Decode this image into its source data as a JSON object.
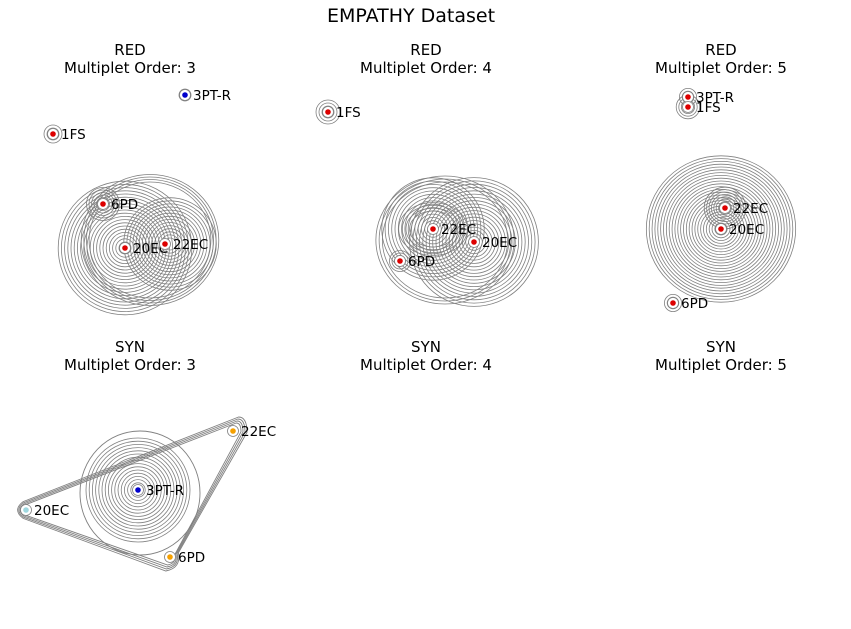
{
  "title": "EMPATHY Dataset",
  "chart_data": [
    {
      "type": "hypergraph",
      "title": "RED",
      "subtitle": "Multiplet Order: 3",
      "nodes": [
        {
          "id": "3PT-R",
          "label": "3PT-R",
          "color": "#0000cc"
        },
        {
          "id": "1FS",
          "label": "1FS",
          "color": "#dd0000"
        },
        {
          "id": "6PD",
          "label": "6PD",
          "color": "#dd0000"
        },
        {
          "id": "20EC",
          "label": "20EC",
          "color": "#dd0000"
        },
        {
          "id": "22EC",
          "label": "22EC",
          "color": "#dd0000"
        }
      ]
    },
    {
      "type": "hypergraph",
      "title": "RED",
      "subtitle": "Multiplet Order: 4",
      "nodes": [
        {
          "id": "1FS",
          "label": "1FS",
          "color": "#dd0000"
        },
        {
          "id": "22EC",
          "label": "22EC",
          "color": "#dd0000"
        },
        {
          "id": "20EC",
          "label": "20EC",
          "color": "#dd0000"
        },
        {
          "id": "6PD",
          "label": "6PD",
          "color": "#dd0000"
        }
      ]
    },
    {
      "type": "hypergraph",
      "title": "RED",
      "subtitle": "Multiplet Order: 5",
      "nodes": [
        {
          "id": "3PT-R",
          "label": "3PT-R",
          "color": "#dd0000"
        },
        {
          "id": "1FS",
          "label": "1FS",
          "color": "#dd0000"
        },
        {
          "id": "22EC",
          "label": "22EC",
          "color": "#dd0000"
        },
        {
          "id": "20EC",
          "label": "20EC",
          "color": "#dd0000"
        },
        {
          "id": "6PD",
          "label": "6PD",
          "color": "#dd0000"
        }
      ]
    },
    {
      "type": "hypergraph",
      "title": "SYN",
      "subtitle": "Multiplet Order: 3",
      "nodes": [
        {
          "id": "22EC",
          "label": "22EC",
          "color": "#f5a000"
        },
        {
          "id": "3PT-R",
          "label": "3PT-R",
          "color": "#0000cc"
        },
        {
          "id": "20EC",
          "label": "20EC",
          "color": "#9fd8e0"
        },
        {
          "id": "6PD",
          "label": "6PD",
          "color": "#f5a000"
        }
      ]
    },
    {
      "type": "hypergraph",
      "title": "SYN",
      "subtitle": "Multiplet Order: 4",
      "nodes": []
    },
    {
      "type": "hypergraph",
      "title": "SYN",
      "subtitle": "Multiplet Order: 5",
      "nodes": []
    }
  ]
}
